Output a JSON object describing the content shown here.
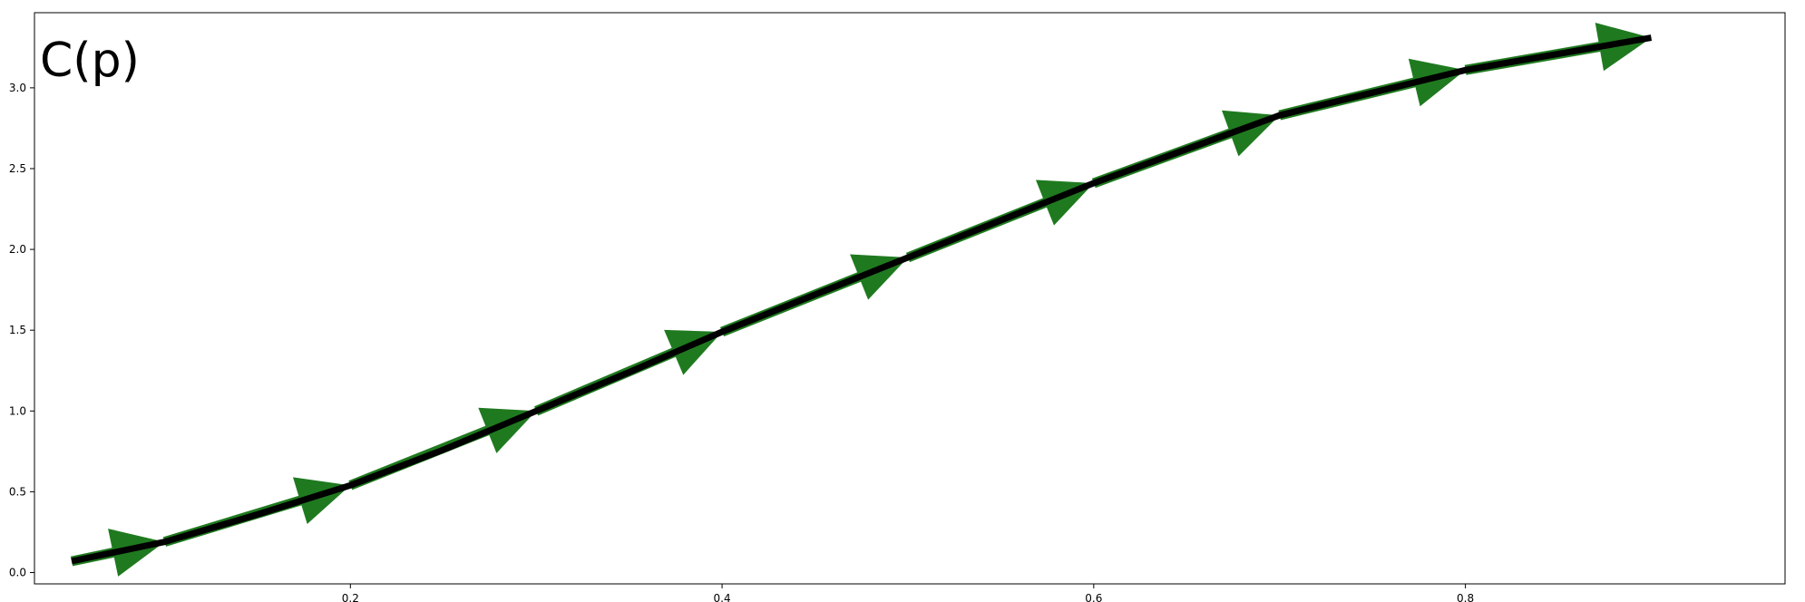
{
  "chart_data": {
    "type": "line",
    "title": "",
    "xlabel": "",
    "ylabel": "",
    "annotation": "C(p)",
    "xlim": [
      0.03,
      0.972
    ],
    "ylim": [
      -0.07,
      3.465
    ],
    "xticks": [
      0.2,
      0.4,
      0.6,
      0.8
    ],
    "xtick_labels": [
      "0.2",
      "0.4",
      "0.6",
      "0.8"
    ],
    "yticks": [
      0.0,
      0.5,
      1.0,
      1.5,
      2.0,
      2.5,
      3.0
    ],
    "ytick_labels": [
      "0.0",
      "0.5",
      "1.0",
      "1.5",
      "2.0",
      "2.5",
      "3.0"
    ],
    "grid": false,
    "legend": "none",
    "series": [
      {
        "x": [
          0.05,
          0.1,
          0.15,
          0.2,
          0.25,
          0.3,
          0.35,
          0.4,
          0.45,
          0.5,
          0.55,
          0.6,
          0.65,
          0.7,
          0.75,
          0.8,
          0.85,
          0.9
        ],
        "y": [
          0.07,
          0.19,
          0.36,
          0.54,
          0.76,
          1.0,
          1.24,
          1.49,
          1.72,
          1.95,
          2.18,
          2.41,
          2.62,
          2.83,
          2.97,
          3.11,
          3.21,
          3.31
        ],
        "color": "#000000"
      }
    ],
    "arrows": {
      "color": "#1f7a1f",
      "segments": [
        {
          "x0": 0.05,
          "y0": 0.07,
          "x1": 0.1,
          "y1": 0.19
        },
        {
          "x0": 0.1,
          "y0": 0.19,
          "x1": 0.2,
          "y1": 0.54
        },
        {
          "x0": 0.2,
          "y0": 0.54,
          "x1": 0.3,
          "y1": 1.0
        },
        {
          "x0": 0.3,
          "y0": 1.0,
          "x1": 0.4,
          "y1": 1.49
        },
        {
          "x0": 0.4,
          "y0": 1.49,
          "x1": 0.5,
          "y1": 1.95
        },
        {
          "x0": 0.5,
          "y0": 1.95,
          "x1": 0.6,
          "y1": 2.41
        },
        {
          "x0": 0.6,
          "y0": 2.41,
          "x1": 0.7,
          "y1": 2.83
        },
        {
          "x0": 0.7,
          "y0": 2.83,
          "x1": 0.8,
          "y1": 3.11
        },
        {
          "x0": 0.8,
          "y0": 3.11,
          "x1": 0.9,
          "y1": 3.31
        }
      ]
    }
  }
}
